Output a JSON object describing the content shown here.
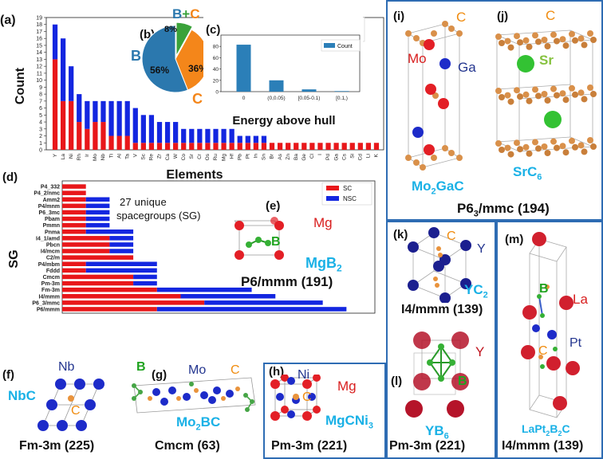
{
  "chart_data": [
    {
      "panel": "(a)",
      "type": "bar",
      "stacked": true,
      "title": "",
      "xlabel": "Elements",
      "ylabel": "Count",
      "ylim": [
        0,
        19
      ],
      "yticks": [
        0,
        1,
        2,
        3,
        4,
        5,
        6,
        7,
        8,
        9,
        10,
        11,
        12,
        13,
        14,
        15,
        16,
        17,
        18,
        19
      ],
      "legend": [
        "SC",
        "NSC"
      ],
      "categories": [
        "Y",
        "La",
        "Ni",
        "Rh",
        "Ir",
        "Mo",
        "Nb",
        "Ti",
        "Al",
        "Ta",
        "V",
        "Sc",
        "Re",
        "Zr",
        "Ca",
        "W",
        "Co",
        "Sr",
        "Cr",
        "Os",
        "Ru",
        "Mg",
        "Hf",
        "Pb",
        "Pt",
        "In",
        "Sn",
        "Br",
        "As",
        "Zn",
        "Ba",
        "Ge",
        "Cl",
        "I",
        "Pd",
        "Ga",
        "Cs",
        "Si",
        "Cd",
        "Li",
        "K"
      ],
      "series": [
        {
          "name": "SC",
          "color": "#e8171a",
          "values": [
            13,
            7,
            7,
            4,
            3,
            4,
            4,
            2,
            2,
            2,
            1,
            1,
            1,
            1,
            1,
            1,
            1,
            1,
            1,
            1,
            1,
            1,
            1,
            1,
            1,
            1,
            1,
            1,
            1,
            1,
            1,
            1,
            1,
            1,
            1,
            1,
            1,
            1,
            1,
            1,
            1
          ]
        },
        {
          "name": "NSC",
          "color": "#1326e0",
          "values": [
            5,
            9,
            5,
            4,
            4,
            3,
            3,
            5,
            5,
            5,
            5,
            4,
            4,
            3,
            3,
            3,
            2,
            2,
            2,
            2,
            2,
            2,
            2,
            1,
            1,
            1,
            1,
            0,
            0,
            0,
            0,
            0,
            0,
            0,
            0,
            0,
            0,
            0,
            0,
            0,
            0
          ]
        }
      ]
    },
    {
      "panel": "(b)",
      "type": "pie",
      "labels": [
        "B",
        "C",
        "B+C"
      ],
      "values": [
        56,
        36,
        8
      ],
      "value_labels": [
        "56%",
        "36%",
        "8%"
      ],
      "colors": [
        "#2b78ae",
        "#f4861a",
        "#3aa23a"
      ]
    },
    {
      "panel": "(c)",
      "type": "bar",
      "xlabel": "Energy above hull",
      "ylabel": "",
      "ylim": [
        0,
        100
      ],
      "yticks": [
        0,
        20,
        40,
        60,
        80
      ],
      "legend": [
        "Count"
      ],
      "categories": [
        "0",
        "(0,0.05)",
        "[0.05-0.1)",
        "[0.1,)"
      ],
      "values": [
        83,
        20,
        4,
        1
      ],
      "color": "#2b7fb8"
    },
    {
      "panel": "(d)",
      "type": "bar",
      "orientation": "horizontal",
      "stacked": true,
      "ylabel": "SG",
      "legend": [
        "SC",
        "NSC"
      ],
      "categories": [
        "P4_332",
        "P4_2/nmc",
        "Amm2",
        "P4/mnm",
        "P6_3mc",
        "Pbam",
        "Pmmn",
        "Pnma",
        "I4_1/amd",
        "Pbcn",
        "I4/mcm",
        "C2/m",
        "P4/mbm",
        "Fddd",
        "Cmcm",
        "Pm-3m",
        "Fm-3m",
        "I4/mmm",
        "P6_3/mmc",
        "P6/mmm"
      ],
      "series": [
        {
          "name": "SC",
          "color": "#e8171a",
          "values": [
            1,
            1,
            1,
            1,
            1,
            1,
            1,
            1,
            2,
            2,
            2,
            3,
            1,
            1,
            3,
            3,
            4,
            5,
            6,
            4
          ]
        },
        {
          "name": "NSC",
          "color": "#1326e0",
          "values": [
            0,
            0,
            1,
            1,
            1,
            1,
            1,
            2,
            1,
            1,
            1,
            0,
            3,
            3,
            1,
            1,
            4,
            4,
            5,
            8
          ]
        }
      ]
    }
  ],
  "panel_labels": {
    "a": "(a)",
    "b": "(b)",
    "c": "(c)",
    "d": "(d)",
    "e": "(e)",
    "f": "(f)",
    "g": "(g)",
    "h": "(h)",
    "i": "(i)",
    "j": "(j)",
    "k": "(k)",
    "l": "(l)",
    "m": "(m)"
  },
  "legend_labels": {
    "sc": "SC",
    "nsc": "NSC",
    "count": "Count"
  },
  "pie_title": {
    "b": "B",
    "plus": "+",
    "c": "C"
  },
  "pie_side_labels": {
    "b": "B",
    "c": "C"
  },
  "panel_d_note": {
    "line1": "27 unique",
    "line2": "spacegroups (SG)"
  },
  "structures": {
    "e": {
      "elements": {
        "mg": "Mg",
        "b": "B"
      },
      "formula": {
        "pre": "MgB",
        "sub": "2"
      },
      "caption": "P6/mmm (191)"
    },
    "f": {
      "elements": {
        "nb": "Nb",
        "c": "C"
      },
      "formula": "NbC",
      "caption": "Fm-3m (225)"
    },
    "g": {
      "elements": {
        "b": "B",
        "mo": "Mo",
        "c": "C"
      },
      "formula": {
        "pre": "Mo",
        "sub": "2",
        "post": "BC"
      },
      "caption": "Cmcm (63)"
    },
    "h": {
      "elements": {
        "ni": "Ni",
        "mg": "Mg",
        "c": "C"
      },
      "formula": {
        "pre": "MgCNi",
        "sub": "3"
      },
      "caption": "Pm-3m (221)"
    },
    "i": {
      "elements": {
        "c": "C",
        "mo": "Mo",
        "ga": "Ga"
      },
      "formula": {
        "pre": "Mo",
        "sub": "2",
        "post": "GaC"
      }
    },
    "j": {
      "elements": {
        "c": "C",
        "sr": "Sr"
      },
      "formula": {
        "pre": "SrC",
        "sub": "6"
      }
    },
    "ij_caption": {
      "pre": "P6",
      "sub": "3",
      "post": "/mmc (194)"
    },
    "k": {
      "elements": {
        "c": "C",
        "y": "Y"
      },
      "formula": {
        "pre": "YC",
        "sub": "2"
      },
      "caption": "I4/mmm (139)"
    },
    "l": {
      "elements": {
        "y": "Y",
        "b": "B"
      },
      "formula": {
        "pre": "YB",
        "sub": "6"
      },
      "caption": "Pm-3m (221)"
    },
    "m": {
      "elements": {
        "b": "B",
        "la": "La",
        "pt": "Pt",
        "c": "C"
      },
      "formula": {
        "p1": "LaPt",
        "s1": "2",
        "p2": "B",
        "s2": "2",
        "p3": "C"
      },
      "caption": "I4/mmm (139)"
    }
  }
}
